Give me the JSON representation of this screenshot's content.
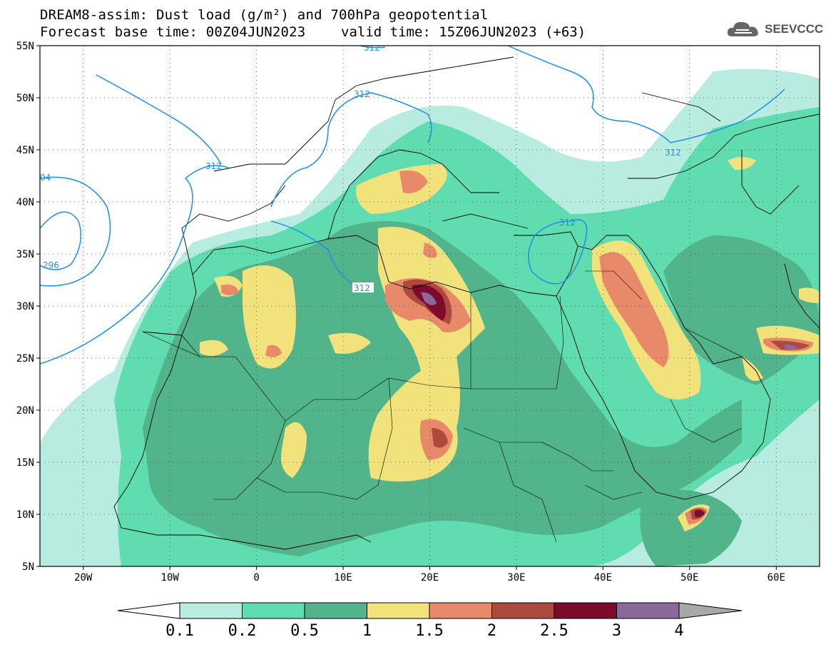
{
  "title": {
    "line1": "DREAM8-assim: Dust load (g/m²) and 700hPa geopotential",
    "line2_left": "Forecast base time: 00Z04JUN2023",
    "line2_right": "valid time: 15Z06JUN2023 (+63)"
  },
  "logo": {
    "text": "SEEVCCC",
    "icon": "cloud-icon"
  },
  "axes": {
    "lat_ticks": [
      "55N",
      "50N",
      "45N",
      "40N",
      "35N",
      "30N",
      "25N",
      "20N",
      "15N",
      "10N",
      "5N"
    ],
    "lon_ticks": [
      "20W",
      "10W",
      "0",
      "10E",
      "20E",
      "30E",
      "40E",
      "50E",
      "60E"
    ],
    "lat_range": [
      5,
      55
    ],
    "lon_range": [
      -25,
      65
    ],
    "grid": "dotted"
  },
  "contours": {
    "labels": [
      "312",
      "312",
      "312",
      "312",
      "312",
      "312",
      "296",
      "04"
    ],
    "color": "#1e8fe8"
  },
  "colorbar": {
    "levels": [
      "0.1",
      "0.2",
      "0.5",
      "1",
      "1.5",
      "2",
      "2.5",
      "3",
      "4"
    ],
    "colors": [
      "#ffffff",
      "#b8ece0",
      "#5fdcb0",
      "#52b48a",
      "#f2e27c",
      "#e8896a",
      "#ad4a3e",
      "#7e0a2c",
      "#8a6a9c",
      "#a8a8a8"
    ]
  }
}
